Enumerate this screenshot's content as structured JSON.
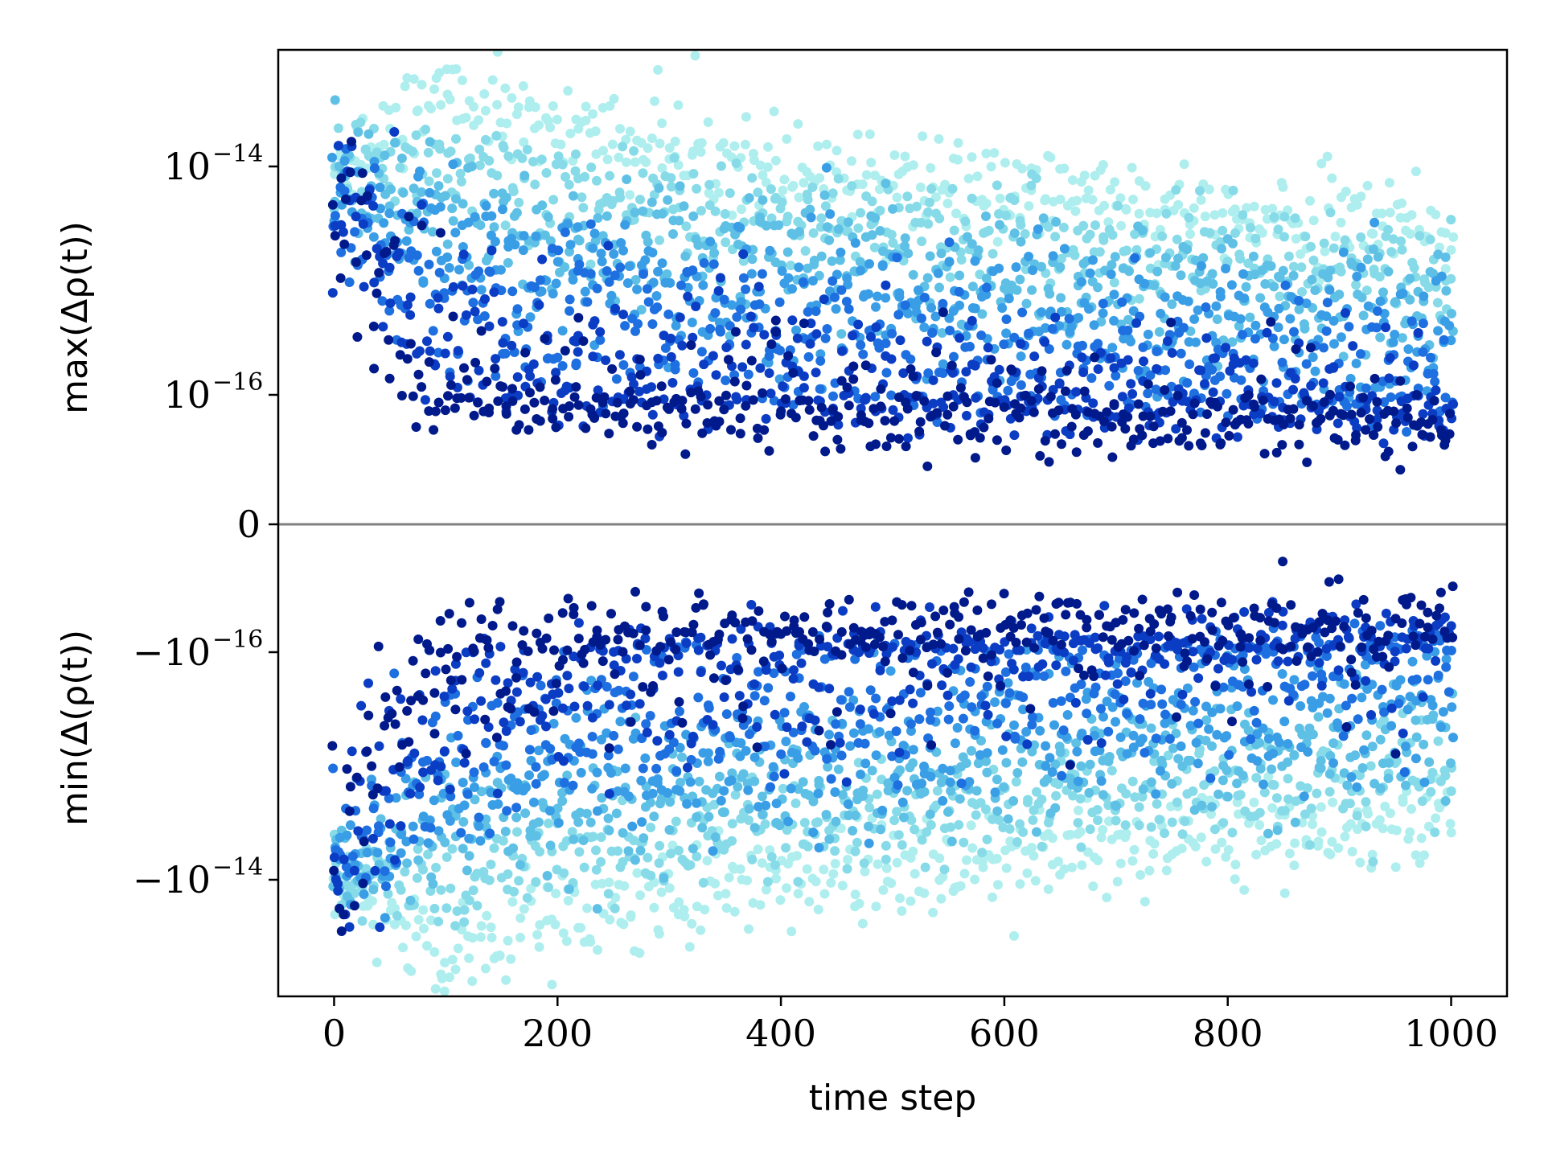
{
  "chart_data": {
    "type": "scatter",
    "xlabel": "time step",
    "ylabel_top": "max(Δρ(t))",
    "ylabel_bottom": "min(Δ(ρ(t))",
    "x_ticks": [
      0,
      200,
      400,
      600,
      800,
      1000
    ],
    "xlim": [
      -50,
      1050
    ],
    "y_scale": "symlog",
    "y_ticks": [
      {
        "label": "10",
        "exp": "−14",
        "value": 1e-14
      },
      {
        "label": "10",
        "exp": "−16",
        "value": 1e-16
      },
      {
        "label": "0",
        "exp": "",
        "value": 0
      },
      {
        "label": "−10",
        "exp": "−16",
        "value": -1e-16
      },
      {
        "label": "−10",
        "exp": "−14",
        "value": -1e-14
      }
    ],
    "ylim": [
      -1e-13,
      1e-13
    ],
    "legend": "none",
    "grid": false,
    "series": [
      {
        "color": "#afeeee",
        "x_range": [
          0,
          1000
        ],
        "y_start": 1e-14,
        "y_peak": 5e-14,
        "y_end": 2.5e-15,
        "spread": 0.22
      },
      {
        "color": "#87dbe8",
        "x_range": [
          0,
          1000
        ],
        "y_start": 1e-14,
        "y_peak": 1.2e-14,
        "y_end": 1.2e-15,
        "spread": 0.22
      },
      {
        "color": "#5fc0e6",
        "x_range": [
          0,
          1000
        ],
        "y_start": 8e-15,
        "y_peak": 5e-15,
        "y_end": 6e-16,
        "spread": 0.25
      },
      {
        "color": "#3a9ee6",
        "x_range": [
          0,
          1000
        ],
        "y_start": 6e-15,
        "y_peak": 2e-15,
        "y_end": 3e-16,
        "spread": 0.3
      },
      {
        "color": "#1e6fe0",
        "x_range": [
          0,
          1000
        ],
        "y_start": 5e-15,
        "y_peak": 8e-16,
        "y_end": 1.2e-16,
        "spread": 0.35
      },
      {
        "color": "#0b3cc4",
        "x_range": [
          0,
          1000
        ],
        "y_start": 5e-15,
        "y_peak": 3e-16,
        "y_end": 5e-17,
        "spread": 0.4
      },
      {
        "color": "#001a8c",
        "x_range": [
          0,
          1000
        ],
        "y_start": 5e-15,
        "y_peak": 1e-16,
        "y_end": 2e-17,
        "spread": 0.5
      }
    ],
    "zero_line_color": "#808080"
  }
}
